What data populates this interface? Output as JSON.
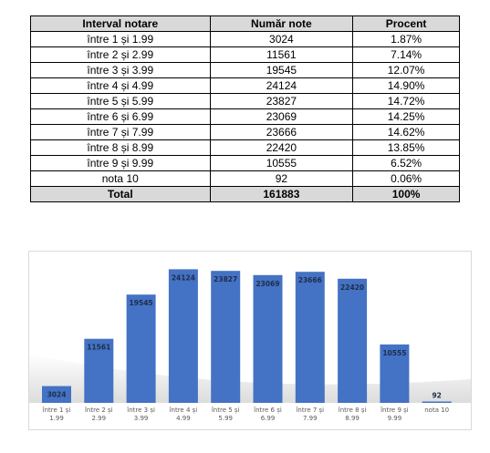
{
  "table": {
    "headers": [
      "Interval notare",
      "Număr note",
      "Procent"
    ],
    "rows": [
      [
        "între 1 și 1.99",
        "3024",
        "1.87%"
      ],
      [
        "între 2 și 2.99",
        "11561",
        "7.14%"
      ],
      [
        "între 3 și 3.99",
        "19545",
        "12.07%"
      ],
      [
        "între 4 și 4.99",
        "24124",
        "14.90%"
      ],
      [
        "între 5 și 5.99",
        "23827",
        "14.72%"
      ],
      [
        "între 6 și 6.99",
        "23069",
        "14.25%"
      ],
      [
        "între 7 și 7.99",
        "23666",
        "14.62%"
      ],
      [
        "între 8 și 8.99",
        "22420",
        "13.85%"
      ],
      [
        "între 9 și 9.99",
        "10555",
        "6.52%"
      ],
      [
        "nota 10",
        "92",
        "0.06%"
      ]
    ],
    "total": [
      "Total",
      "161883",
      "100%"
    ]
  },
  "chart_data": {
    "type": "bar",
    "categories": [
      [
        "între 1 și",
        "1.99"
      ],
      [
        "între 2 și",
        "2.99"
      ],
      [
        "între 3 și",
        "3.99"
      ],
      [
        "între 4 și",
        "4.99"
      ],
      [
        "între 5 și",
        "5.99"
      ],
      [
        "între 6 și",
        "6.99"
      ],
      [
        "între 7 și",
        "7.99"
      ],
      [
        "între 8 și",
        "8.99"
      ],
      [
        "între 9 și",
        "9.99"
      ],
      [
        "nota 10"
      ]
    ],
    "values": [
      3024,
      11561,
      19545,
      24124,
      23827,
      23069,
      23666,
      22420,
      10555,
      92
    ],
    "ylim": [
      0,
      26000
    ],
    "grid": false,
    "bar_color": "#4472c4",
    "label_color": "#1f2d4a"
  }
}
